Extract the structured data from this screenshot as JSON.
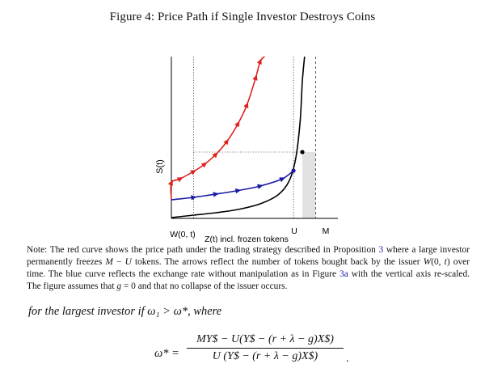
{
  "figure": {
    "title": "Figure 4: Price Path if Single Investor Destroys Coins",
    "ylabel": "S(t)",
    "xlabel": "Z(t) incl. frozen tokens",
    "tick_w": "W(0, t)",
    "tick_u": "U",
    "tick_m": "M"
  },
  "chart_data": {
    "type": "line",
    "title": "Figure 4: Price Path if Single Investor Destroys Coins",
    "xlabel": "Z(t) incl. frozen tokens",
    "ylabel": "S(t)",
    "x_ticks": [
      "W(0, t)",
      "U",
      "M"
    ],
    "x_tick_values": [
      1.0,
      5.5,
      6.5
    ],
    "xlim": [
      0,
      7.5
    ],
    "ylim": [
      0,
      10
    ],
    "series": [
      {
        "color": "#e0211c",
        "x": [
          0,
          0.0,
          0.4,
          1.0,
          1.5,
          2.0,
          2.5,
          3.0,
          3.4,
          3.8,
          4.0,
          4.2
        ],
        "y": [
          1.2,
          2.2,
          2.45,
          2.9,
          3.35,
          3.95,
          4.75,
          5.85,
          7.0,
          8.7,
          9.7,
          10.0
        ],
        "arrows": true
      },
      {
        "color": "#1a1aa6",
        "x": [
          0,
          1.0,
          2.0,
          3.0,
          4.0,
          5.0,
          5.5
        ],
        "y": [
          1.15,
          1.3,
          1.5,
          1.72,
          2.0,
          2.45,
          2.95
        ],
        "arrows": true
      },
      {
        "color": "#000000",
        "x": [
          0,
          1.0,
          2.0,
          3.0,
          4.0,
          4.8,
          5.3,
          5.6,
          5.8,
          5.9,
          6.0
        ],
        "y": [
          0.05,
          0.2,
          0.35,
          0.55,
          0.9,
          1.45,
          2.3,
          3.7,
          6.0,
          8.5,
          10.0
        ]
      }
    ],
    "points": [
      {
        "x": 5.5,
        "y": 2.95,
        "color": "#1a1aa6"
      },
      {
        "x": 5.9,
        "y": 4.1,
        "color": "#000000"
      }
    ],
    "shaded_region": {
      "x": [
        5.9,
        6.5
      ],
      "y": [
        0,
        4.1
      ],
      "color": "#e2e2e2"
    },
    "reference_lines": [
      {
        "orientation": "horizontal",
        "y": 4.1,
        "x_range": [
          1.0,
          5.9
        ],
        "style": "dotted"
      },
      {
        "orientation": "vertical",
        "x": 1.0,
        "style": "dotted"
      },
      {
        "orientation": "vertical",
        "x": 5.5,
        "style": "dotted"
      },
      {
        "orientation": "vertical",
        "x": 6.5,
        "style": "dashed"
      }
    ]
  },
  "note": {
    "parts": [
      {
        "t": "Note: The red curve shows the price path under the trading strategy described in Proposition ",
        "ref": false
      },
      {
        "t": "3",
        "ref": true
      },
      {
        "t": " where a large investor permanently freezes ",
        "ref": false
      },
      {
        "t": "M",
        "math": true
      },
      {
        "t": " − ",
        "ref": false
      },
      {
        "t": "U",
        "math": true
      },
      {
        "t": " tokens. The arrows reflect the number of tokens bought back by the issuer ",
        "ref": false
      },
      {
        "t": "W",
        "math": true
      },
      {
        "t": "(0, ",
        "ref": false
      },
      {
        "t": "t",
        "math": true
      },
      {
        "t": ") over time. The blue curve reflects the exchange rate without manipulation as in Figure ",
        "ref": false
      },
      {
        "t": "3a",
        "ref": true
      },
      {
        "t": " with the vertical axis re-scaled. The figure assumes that ",
        "ref": false
      },
      {
        "t": "g",
        "math": true
      },
      {
        "t": " = 0 and that no collapse of the issuer occurs.",
        "ref": false
      }
    ]
  },
  "lead": "for the largest investor if ω₁ > ω*, where",
  "equation": {
    "lhs": "ω* =",
    "numerator": "MY$ − U(Y$ − (r + λ − g)X$)",
    "denominator": "U (Y$ − (r + λ − g)X$)",
    "trailing": "."
  }
}
